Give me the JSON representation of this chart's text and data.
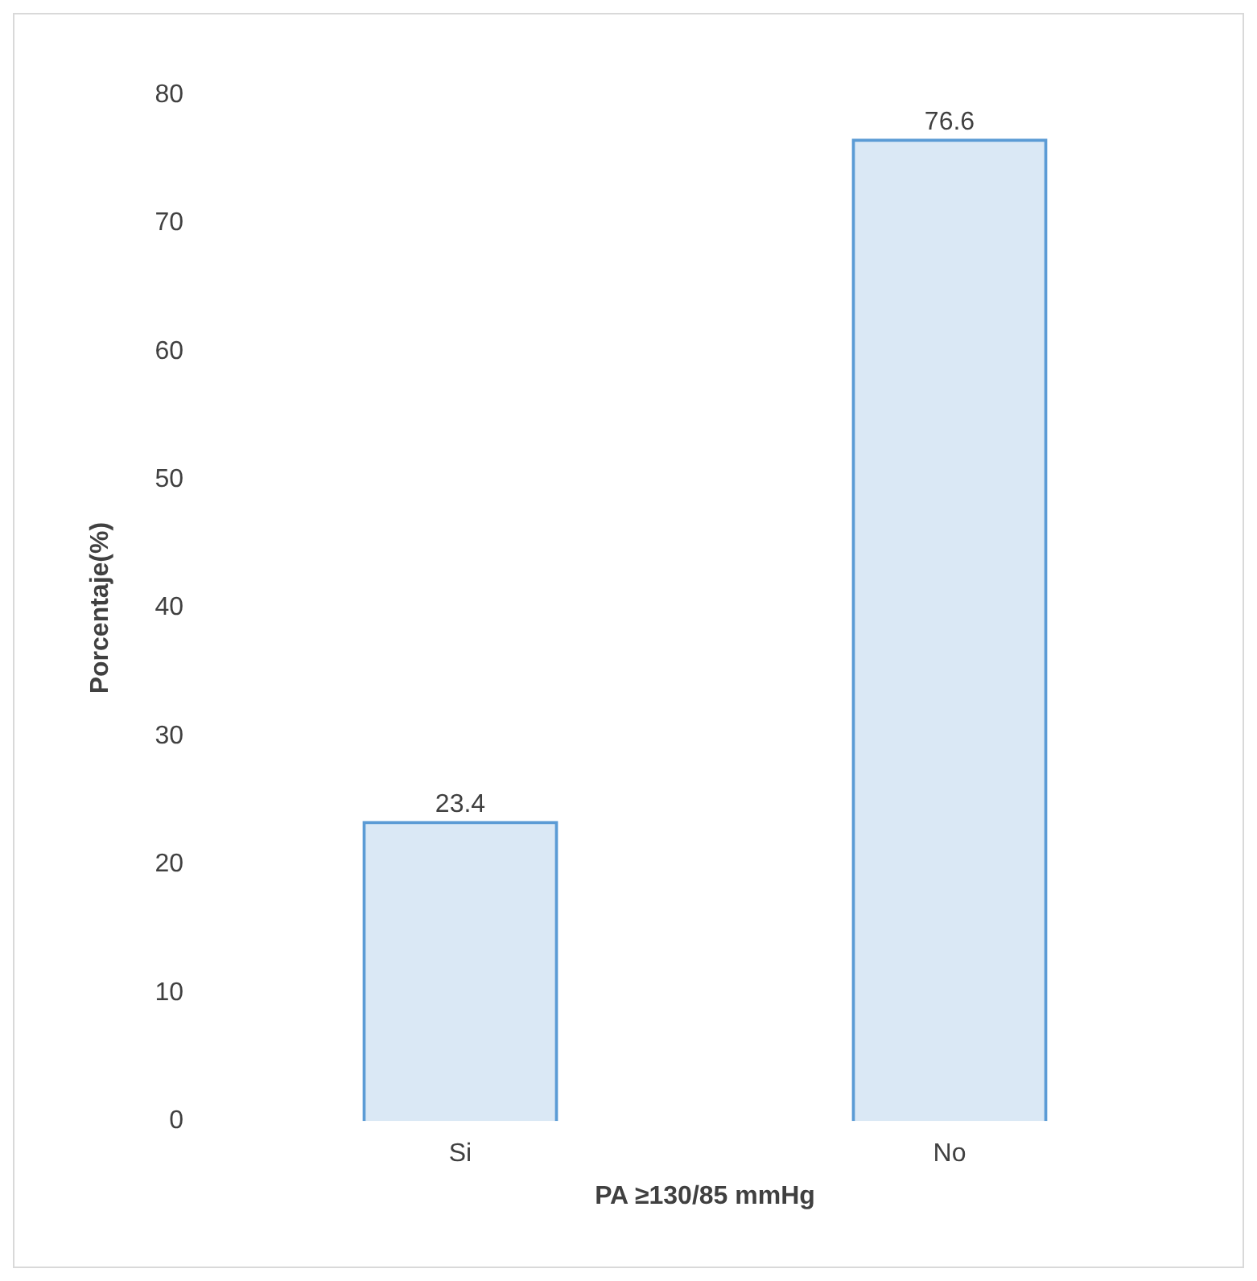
{
  "chart_data": {
    "type": "bar",
    "xlabel": "PA ≥130/85 mmHg",
    "ylabel": "Porcentaje(%)",
    "categories": [
      "Si",
      "No"
    ],
    "values": [
      23.4,
      76.6
    ],
    "color": "#5b9bd5",
    "ylim": [
      0,
      80
    ],
    "yticks": [
      0,
      10,
      20,
      30,
      40,
      50,
      60,
      70,
      80
    ],
    "grid": false,
    "legend": false,
    "data_labels": true
  }
}
